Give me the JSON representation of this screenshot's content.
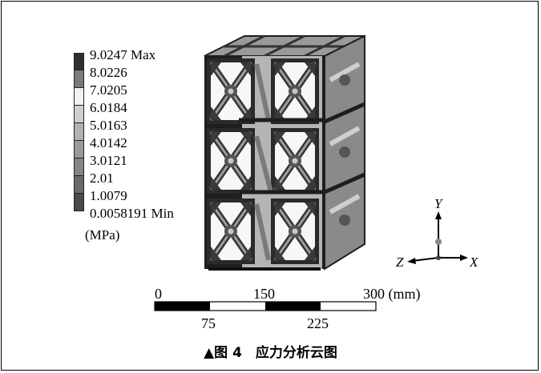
{
  "legend": {
    "entries": [
      {
        "label": "9.0247 Max",
        "color": "#2e2e2e"
      },
      {
        "label": "8.0226",
        "color": "#7a7a7a"
      },
      {
        "label": "7.0205",
        "color": "#f2f2f2"
      },
      {
        "label": "6.0184",
        "color": "#cfcfcf"
      },
      {
        "label": "5.0163",
        "color": "#b2b2b2"
      },
      {
        "label": "4.0142",
        "color": "#9a9a9a"
      },
      {
        "label": "3.0121",
        "color": "#858585"
      },
      {
        "label": "2.01",
        "color": "#6a6a6a"
      },
      {
        "label": "1.0079",
        "color": "#4a4a4a"
      },
      {
        "label": "0.0058191 Min",
        "color": "#1e1e1e"
      }
    ],
    "unit": "(MPa)"
  },
  "axes": {
    "y": "Y",
    "z": "Z",
    "x": "X"
  },
  "scale_bar": {
    "top_labels": [
      "0",
      "150",
      "300 (mm)"
    ],
    "bottom_labels": [
      "75",
      "225"
    ]
  },
  "caption": "▲图 4　应力分析云图"
}
